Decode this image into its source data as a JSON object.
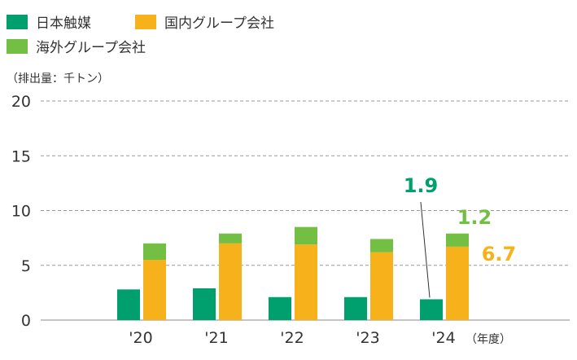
{
  "chart_data": {
    "type": "bar",
    "stacked": true,
    "categories": [
      "'20",
      "'21",
      "'22",
      "'23",
      "'24"
    ],
    "x_unit_label": "（年度）",
    "y_unit_label": "（排出量：千トン）",
    "ylim": [
      0,
      20
    ],
    "yticks": [
      0,
      5,
      10,
      15,
      20
    ],
    "grid": true,
    "legend_position": "top-left",
    "series": [
      {
        "name": "日本触媒",
        "color": "#00a06e",
        "stack": "japan",
        "values": [
          2.8,
          2.9,
          2.1,
          2.1,
          1.9
        ]
      },
      {
        "name": "国内グループ会社",
        "color": "#f7b21b",
        "stack": "group",
        "values": [
          5.5,
          7.0,
          6.9,
          6.2,
          6.7
        ]
      },
      {
        "name": "海外グループ会社",
        "color": "#72bf44",
        "stack": "group",
        "values": [
          1.5,
          0.9,
          1.6,
          1.2,
          1.2
        ]
      }
    ],
    "annotations": [
      {
        "text": "1.9",
        "color": "#00a06e",
        "category": "'24",
        "series": "日本触媒"
      },
      {
        "text": "1.2",
        "color": "#72bf44",
        "category": "'24",
        "series": "海外グループ会社"
      },
      {
        "text": "6.7",
        "color": "#f7b21b",
        "category": "'24",
        "series": "国内グループ会社"
      }
    ]
  }
}
